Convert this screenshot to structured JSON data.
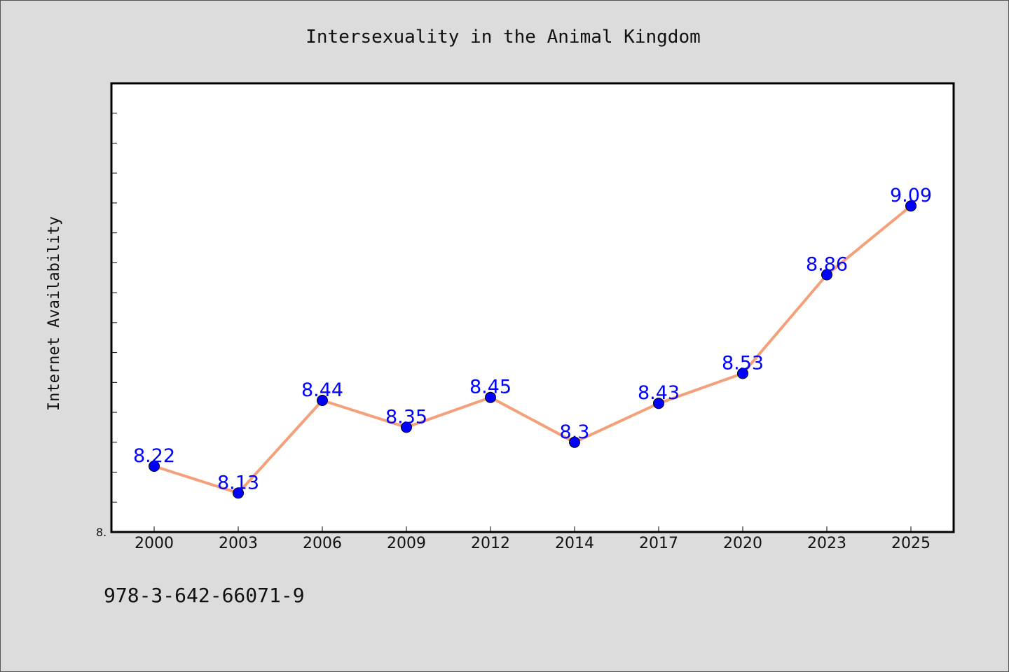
{
  "chart_data": {
    "type": "line",
    "title": "Intersexuality in the Animal Kingdom",
    "xlabel": "",
    "ylabel": "Internet Availability",
    "categories": [
      "2000",
      "2003",
      "2006",
      "2009",
      "2012",
      "2014",
      "2017",
      "2020",
      "2023",
      "2025"
    ],
    "values": [
      8.22,
      8.13,
      8.44,
      8.35,
      8.45,
      8.3,
      8.43,
      8.53,
      8.86,
      9.09
    ],
    "data_labels": [
      "8.22",
      "8.13",
      "8.44",
      "8.35",
      "8.45",
      "8.3",
      "8.43",
      "8.53",
      "8.86",
      "9.09"
    ],
    "ylim": [
      8.0,
      9.5
    ],
    "y_tick_label": "8.",
    "grid": false,
    "legend": "none",
    "line_color": "#f4a07a",
    "marker_color": "#0000ff",
    "label_color": "#0000ff"
  },
  "footer": {
    "code": "978-3-642-66071-9"
  }
}
